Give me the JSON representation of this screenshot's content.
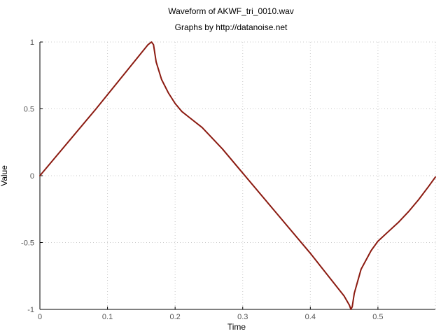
{
  "chart_data": {
    "type": "line",
    "title": "Waveform of AKWF_tri_0010.wav",
    "subtitle": "Graphs by http://datanoise.net",
    "xlabel": "Time",
    "ylabel": "Value",
    "xlim": [
      0,
      0.585
    ],
    "ylim": [
      -1,
      1
    ],
    "xticks": [
      {
        "value": 0,
        "label": "0"
      },
      {
        "value": 0.1,
        "label": "0.1"
      },
      {
        "value": 0.2,
        "label": "0.2"
      },
      {
        "value": 0.3,
        "label": "0.3"
      },
      {
        "value": 0.4,
        "label": "0.4"
      },
      {
        "value": 0.5,
        "label": "0.5"
      }
    ],
    "yticks": [
      {
        "value": 1,
        "label": "1"
      },
      {
        "value": 0.5,
        "label": "0.5"
      },
      {
        "value": 0,
        "label": "0"
      },
      {
        "value": -0.5,
        "label": "-0.5"
      },
      {
        "value": -1,
        "label": "-1"
      }
    ],
    "grid": true,
    "line_color": "#8b1a10",
    "series": [
      {
        "x": [
          0,
          0.083,
          0.16,
          0.165,
          0.168,
          0.172,
          0.18,
          0.19,
          0.2,
          0.21,
          0.22,
          0.24,
          0.27,
          0.3,
          0.35,
          0.4,
          0.45,
          0.458,
          0.46,
          0.462,
          0.465,
          0.475,
          0.49,
          0.5,
          0.515,
          0.53,
          0.545,
          0.56,
          0.575,
          0.585
        ],
        "y": [
          0,
          0.5,
          0.98,
          1.0,
          0.98,
          0.85,
          0.72,
          0.62,
          0.54,
          0.48,
          0.44,
          0.36,
          0.2,
          0.02,
          -0.28,
          -0.58,
          -0.9,
          -0.97,
          -1.0,
          -0.98,
          -0.88,
          -0.7,
          -0.56,
          -0.49,
          -0.42,
          -0.35,
          -0.27,
          -0.18,
          -0.08,
          -0.01
        ]
      }
    ]
  }
}
